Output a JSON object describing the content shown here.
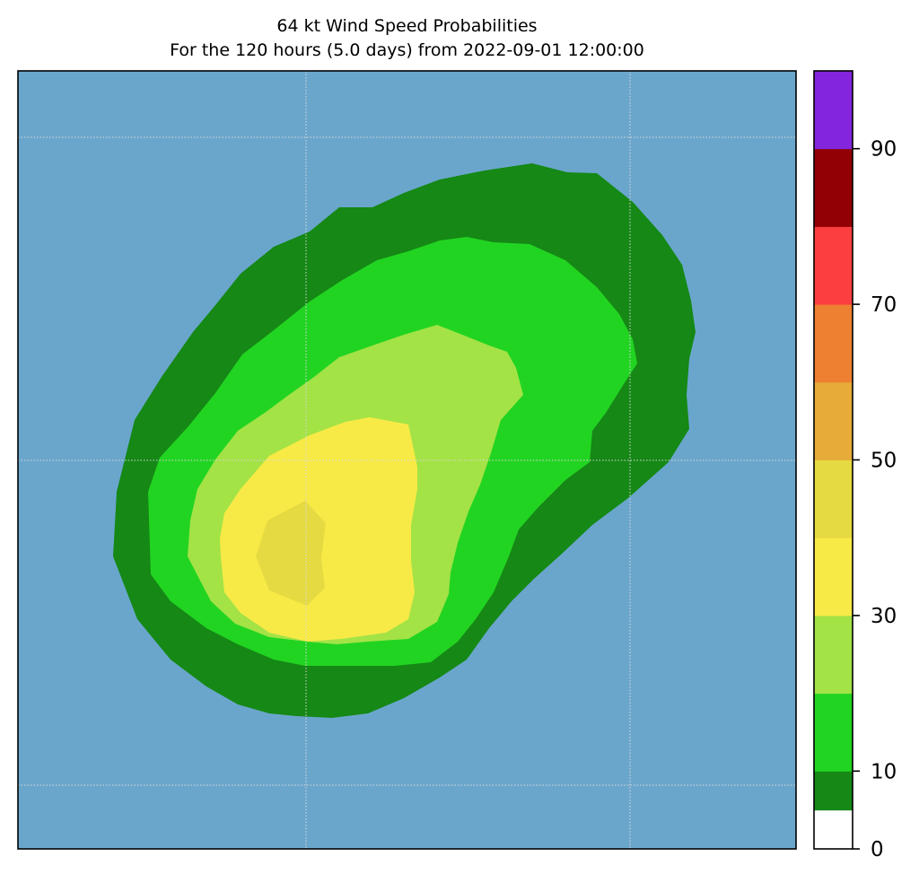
{
  "chart_data": {
    "type": "filled-contour",
    "title": "64 kt Wind Speed Probabilities",
    "subtitle": "For the 120 hours (5.0 days) from 2022-09-01 12:00:00",
    "background_color": "#6aa6cc",
    "gridlines": "dotted",
    "colorbar": {
      "ticks": [
        "0",
        "10",
        "30",
        "50",
        "70",
        "90"
      ],
      "tick_values": [
        0,
        10,
        30,
        50,
        70,
        90
      ],
      "range": [
        0,
        100
      ],
      "levels": [
        {
          "from": 0,
          "to": 5,
          "color": "#ffffff"
        },
        {
          "from": 5,
          "to": 10,
          "color": "#158815"
        },
        {
          "from": 10,
          "to": 20,
          "color": "#22d422"
        },
        {
          "from": 20,
          "to": 30,
          "color": "#a3e346"
        },
        {
          "from": 30,
          "to": 40,
          "color": "#f8ea46"
        },
        {
          "from": 40,
          "to": 50,
          "color": "#e6da42"
        },
        {
          "from": 50,
          "to": 60,
          "color": "#e6ab38"
        },
        {
          "from": 60,
          "to": 70,
          "color": "#ee8032"
        },
        {
          "from": 70,
          "to": 80,
          "color": "#fb3f40"
        },
        {
          "from": 80,
          "to": 90,
          "color": "#920005"
        },
        {
          "from": 90,
          "to": 100,
          "color": "#8225dc"
        }
      ]
    },
    "contour_bands": [
      {
        "name": "band-5-10",
        "min_level": 5
      },
      {
        "name": "band-10-20",
        "min_level": 10
      },
      {
        "name": "band-20-30",
        "min_level": 20
      },
      {
        "name": "band-30-40",
        "min_level": 30
      },
      {
        "name": "band-40-50",
        "min_level": 40
      }
    ]
  }
}
